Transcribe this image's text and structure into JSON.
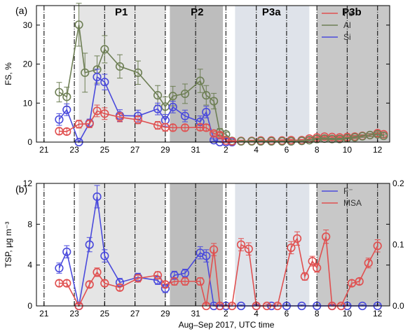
{
  "figure": {
    "xlabel": "Aug–Sep 2017, UTC time",
    "x_ticks": [
      {
        "day": 0,
        "label": "21"
      },
      {
        "day": 2,
        "label": "23"
      },
      {
        "day": 4,
        "label": "25"
      },
      {
        "day": 6,
        "label": "27"
      },
      {
        "day": 8,
        "label": "29"
      },
      {
        "day": 10,
        "label": "31"
      },
      {
        "day": 12,
        "label": "2"
      },
      {
        "day": 14,
        "label": "4"
      },
      {
        "day": 16,
        "label": "6"
      },
      {
        "day": 18,
        "label": "8"
      },
      {
        "day": 20,
        "label": "10"
      },
      {
        "day": 22,
        "label": "12"
      }
    ],
    "x_range": [
      -0.5,
      22.8
    ],
    "periods": [
      {
        "label": "P1",
        "start": 2.3,
        "end": 8.0,
        "shade": "#e5e5e5",
        "label_x": 5.1
      },
      {
        "label": "P2",
        "start": 8.3,
        "end": 11.8,
        "shade": "#bdbdbd",
        "label_x": 10.1
      },
      {
        "label": "P3a",
        "start": 12.6,
        "end": 17.5,
        "shade": "#dfe3ea",
        "label_x": 15.0
      },
      {
        "label": "P3b",
        "start": 18.0,
        "end": 22.8,
        "shade": "#c8c8c8",
        "label_x": 20.3
      }
    ],
    "day_lines": [
      0,
      2,
      4,
      6,
      8,
      10,
      12,
      14,
      16,
      18,
      20,
      22
    ],
    "colors": {
      "Fe": "#e05050",
      "Al": "#6e7f55",
      "Si": "#4a4adc",
      "F": "#4a4adc",
      "MSA": "#e05050"
    }
  },
  "chart_data": [
    {
      "type": "line",
      "panel": "(a)",
      "ylabel": "FS, %",
      "ylim": [
        0,
        35
      ],
      "yticks": [
        0,
        10,
        20,
        30
      ],
      "legend": {
        "position": "top-right",
        "entries": [
          "Fe",
          "Al",
          "Si"
        ]
      },
      "series": [
        {
          "name": "Al",
          "color": "#6e7f55",
          "x": [
            1.0,
            1.5,
            2.3,
            2.7,
            3.5,
            4.0,
            5.0,
            6.2,
            7.5,
            8.0,
            8.5,
            9.3,
            10.3,
            10.7,
            11.2,
            11.6,
            12.0,
            12.4
          ],
          "y": [
            12.8,
            11.6,
            30.1,
            17.8,
            18.6,
            23.8,
            19.4,
            17.8,
            12.0,
            9.1,
            11.8,
            12.4,
            15.7,
            12.0,
            10.5,
            2.5,
            2.0,
            0.3
          ],
          "err": [
            2.5,
            2.5,
            5.5,
            5.0,
            3.5,
            3.5,
            3.0,
            3.0,
            2.5,
            2.5,
            2.5,
            2.5,
            3.0,
            2.5,
            2.0,
            1.0,
            0.5,
            0.3
          ]
        },
        {
          "name": "Si",
          "color": "#4a4adc",
          "x": [
            1.0,
            1.5,
            2.3,
            3.0,
            3.5,
            4.0,
            5.0,
            6.2,
            7.5,
            8.0,
            8.5,
            9.3,
            10.3,
            10.7,
            11.2,
            11.6,
            12.0,
            12.4
          ],
          "y": [
            5.8,
            8.3,
            0.0,
            4.9,
            16.7,
            15.4,
            6.8,
            6.7,
            8.5,
            5.6,
            9.0,
            6.7,
            5.2,
            7.7,
            0.5,
            0.0,
            0.0,
            0.0
          ],
          "err": [
            1.5,
            1.5,
            0.3,
            1.0,
            2.0,
            2.0,
            1.5,
            1.5,
            1.5,
            1.5,
            1.5,
            1.5,
            1.5,
            1.5,
            0.3,
            0.2,
            0.2,
            0.2
          ]
        },
        {
          "name": "Fe",
          "color": "#e05050",
          "x": [
            1.0,
            1.5,
            2.3,
            3.0,
            3.5,
            4.0,
            5.0,
            6.2,
            7.5,
            8.0,
            8.5,
            9.3,
            10.3,
            10.7,
            11.2,
            11.6,
            12.0,
            12.4,
            13.0,
            13.7,
            14.3,
            15.0,
            15.7,
            16.3,
            17.0,
            17.5,
            18.0,
            18.5,
            19.0,
            19.5,
            20.0,
            20.5,
            21.0,
            21.5,
            22.0,
            22.4
          ],
          "y": [
            2.8,
            2.7,
            4.6,
            4.7,
            8.0,
            7.3,
            6.4,
            5.7,
            4.3,
            3.8,
            3.7,
            3.7,
            3.8,
            3.7,
            2.2,
            1.8,
            0.4,
            0.2,
            0.3,
            0.3,
            0.4,
            0.4,
            0.4,
            0.5,
            0.5,
            0.9,
            1.2,
            1.4,
            1.3,
            1.2,
            1.3,
            1.4,
            1.6,
            1.8,
            2.3,
            2.0
          ],
          "err": [
            0.8,
            0.8,
            1.0,
            1.0,
            1.5,
            1.5,
            1.2,
            1.0,
            1.0,
            1.0,
            0.8,
            0.8,
            0.8,
            0.8,
            0.6,
            0.6,
            0.3,
            0.2,
            0.2,
            0.2,
            0.2,
            0.2,
            0.2,
            0.2,
            0.2,
            0.3,
            0.3,
            0.3,
            0.3,
            0.3,
            0.3,
            0.3,
            0.3,
            0.3,
            0.4,
            0.4
          ]
        },
        {
          "name": "Al (late)",
          "color": "#6e7f55",
          "x": [
            13.0,
            13.7,
            14.3,
            15.0,
            15.7,
            16.3,
            17.0,
            17.5,
            18.0,
            18.5,
            19.0,
            19.5,
            20.0,
            20.5,
            21.0,
            21.5,
            22.0,
            22.4
          ],
          "y": [
            0.2,
            0.2,
            0.2,
            0.2,
            0.2,
            0.2,
            0.3,
            0.5,
            0.8,
            0.9,
            0.8,
            0.8,
            1.0,
            1.2,
            1.5,
            1.8,
            2.0,
            1.6
          ],
          "err": [
            0.1,
            0.1,
            0.1,
            0.1,
            0.1,
            0.1,
            0.1,
            0.2,
            0.2,
            0.2,
            0.2,
            0.2,
            0.2,
            0.3,
            0.3,
            0.4,
            0.4,
            0.4
          ]
        }
      ]
    },
    {
      "type": "line",
      "panel": "(b)",
      "ylabel": "TSP, μg m⁻³",
      "ylim": [
        0,
        12
      ],
      "yticks": [
        0,
        4,
        8,
        12
      ],
      "ylim_right": [
        0,
        0.2
      ],
      "yticks_right": [
        0.0,
        0.1,
        0.2
      ],
      "legend": {
        "position": "top-right",
        "entries": [
          "F⁻",
          "MSA"
        ]
      },
      "series": [
        {
          "name": "F⁻",
          "color": "#4a4adc",
          "axis": "left",
          "x": [
            1.0,
            1.5,
            2.3,
            3.0,
            3.5,
            4.0,
            5.0,
            6.2,
            7.5,
            8.0,
            8.6,
            9.3,
            10.3,
            10.7,
            11.2,
            11.6,
            12.0,
            13.0,
            14.0,
            15.0,
            16.0,
            17.0,
            18.0,
            19.0,
            20.0,
            21.0,
            22.0
          ],
          "y": [
            3.7,
            5.3,
            0.0,
            6.0,
            10.7,
            4.9,
            2.3,
            2.8,
            2.5,
            1.7,
            3.0,
            3.2,
            5.2,
            4.9,
            0.0,
            0.0,
            0.0,
            0.0,
            0.0,
            0.0,
            0.0,
            0.0,
            0.0,
            0.0,
            0.0,
            0.0,
            0.0
          ],
          "err": [
            0.5,
            0.6,
            0.2,
            0.7,
            1.1,
            0.6,
            0.4,
            0.4,
            0.4,
            0.4,
            0.4,
            0.4,
            0.6,
            0.6,
            0.1,
            0.1,
            0.1,
            0.1,
            0.1,
            0.1,
            0.1,
            0.1,
            0.1,
            0.1,
            0.1,
            0.1,
            0.1
          ]
        },
        {
          "name": "MSA",
          "color": "#e05050",
          "axis": "right",
          "x": [
            1.0,
            1.5,
            2.3,
            3.0,
            3.5,
            4.0,
            5.0,
            6.2,
            7.5,
            8.0,
            8.6,
            9.3,
            10.3,
            10.7,
            11.2,
            11.6,
            12.4,
            13.0,
            13.5,
            14.0,
            14.7,
            15.4,
            16.3,
            16.7,
            17.2,
            17.7,
            18.0,
            18.6,
            19.0,
            19.6,
            20.3,
            20.8,
            21.4,
            22.0
          ],
          "y": [
            0.037,
            0.037,
            0.0,
            0.035,
            0.055,
            0.037,
            0.03,
            0.045,
            0.05,
            0.035,
            0.04,
            0.04,
            0.04,
            0.0,
            0.092,
            0.0,
            0.0,
            0.1,
            0.093,
            0.0,
            0.0,
            0.0,
            0.095,
            0.11,
            0.048,
            0.073,
            0.062,
            0.113,
            0.0,
            0.0,
            0.037,
            0.04,
            0.07,
            0.098
          ],
          "err": [
            0.005,
            0.005,
            0.003,
            0.005,
            0.007,
            0.005,
            0.005,
            0.006,
            0.006,
            0.005,
            0.006,
            0.006,
            0.006,
            0.003,
            0.01,
            0.003,
            0.003,
            0.01,
            0.01,
            0.003,
            0.003,
            0.003,
            0.01,
            0.011,
            0.006,
            0.008,
            0.007,
            0.011,
            0.003,
            0.003,
            0.005,
            0.005,
            0.008,
            0.01
          ]
        }
      ]
    }
  ]
}
